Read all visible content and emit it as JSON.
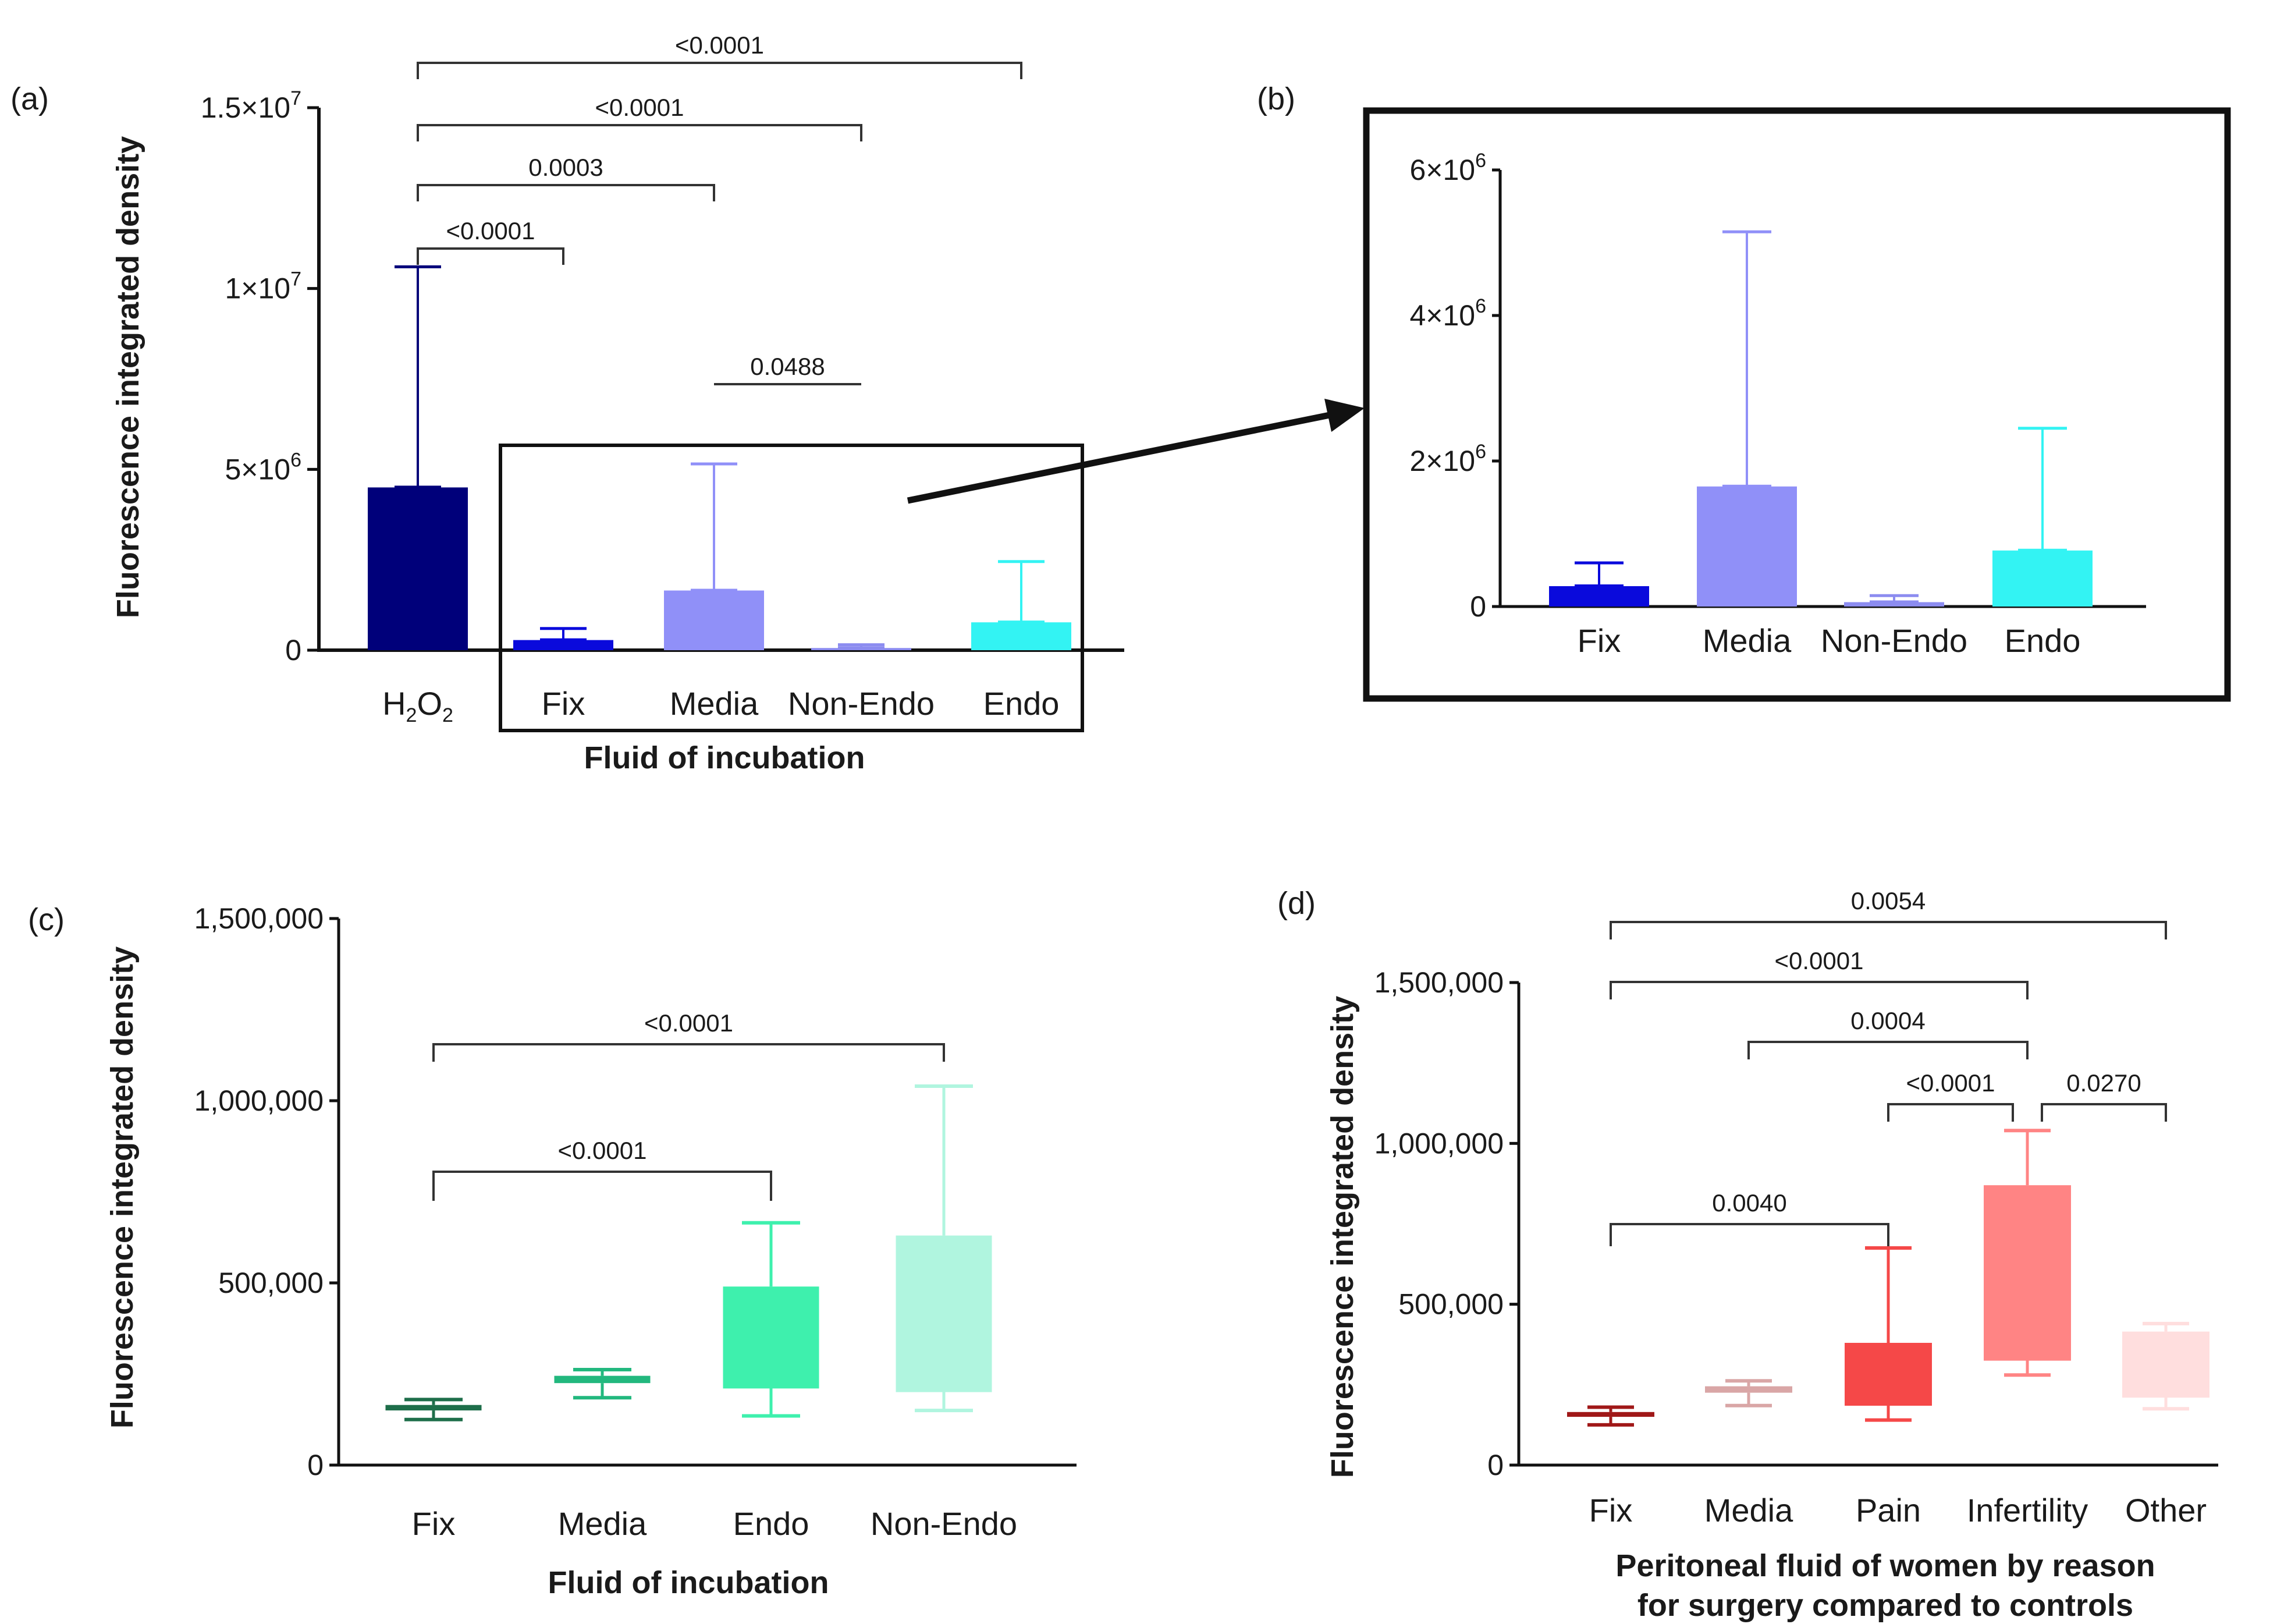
{
  "chart_data": [
    {
      "panel": "(a)",
      "type": "bar",
      "xlabel": "Fluid of incubation",
      "ylabel": "Fluorescence integrated density",
      "categories": [
        "H₂O₂",
        "Fix",
        "Media",
        "Non-Endo",
        "Endo"
      ],
      "values": [
        4500000,
        280000,
        1650000,
        60000,
        770000
      ],
      "error_upper": [
        10600000,
        600000,
        5150000,
        150000,
        2450000
      ],
      "colors": [
        "#00007a",
        "#0a0adc",
        "#9090f8",
        "#8c8cf0",
        "#33f3f3"
      ],
      "ylim": [
        0,
        15000000
      ],
      "yticks": [
        0,
        5000000,
        10000000,
        15000000
      ],
      "ytick_labels": [
        {
          "base": "0",
          "exp": ""
        },
        {
          "base": "5×10",
          "exp": "6"
        },
        {
          "base": "1×10",
          "exp": "7"
        },
        {
          "base": "1.5×10",
          "exp": "7"
        }
      ],
      "comparisons": [
        {
          "from": 0,
          "to": 4,
          "label": "<0.0001",
          "level": 4
        },
        {
          "from": 0,
          "to": 3,
          "label": "<0.0001",
          "level": 3
        },
        {
          "from": 0,
          "to": 2,
          "label": "0.0003",
          "level": 2
        },
        {
          "from": 0,
          "to": 1,
          "label": "<0.0001",
          "level": 1
        },
        {
          "from": 2,
          "to": 3,
          "label": "0.0488",
          "level": 0
        }
      ]
    },
    {
      "panel": "(b)",
      "type": "bar",
      "categories": [
        "Fix",
        "Media",
        "Non-Endo",
        "Endo"
      ],
      "values": [
        280000,
        1650000,
        60000,
        770000
      ],
      "error_upper": [
        600000,
        5150000,
        150000,
        2450000
      ],
      "colors": [
        "#0a0adc",
        "#9090f8",
        "#8c8cf0",
        "#33f3f3"
      ],
      "ylim": [
        0,
        6000000
      ],
      "yticks": [
        0,
        2000000,
        4000000,
        6000000
      ],
      "ytick_labels": [
        {
          "base": "0",
          "exp": ""
        },
        {
          "base": "2×10",
          "exp": "6"
        },
        {
          "base": "4×10",
          "exp": "6"
        },
        {
          "base": "6×10",
          "exp": "6"
        }
      ]
    },
    {
      "panel": "(c)",
      "type": "box",
      "xlabel": "Fluid of incubation",
      "ylabel": "Fluorescence integrated density",
      "categories": [
        "Fix",
        "Media",
        "Endo",
        "Non-Endo"
      ],
      "boxes": [
        {
          "min": 125000,
          "q1": 150000,
          "median": 158000,
          "q3": 165000,
          "max": 180000
        },
        {
          "min": 185000,
          "q1": 225000,
          "median": 235000,
          "q3": 245000,
          "max": 262000
        },
        {
          "min": 135000,
          "q1": 215000,
          "median": 215000,
          "q3": 490000,
          "max": 665000
        },
        {
          "min": 150000,
          "q1": 205000,
          "median": 205000,
          "q3": 630000,
          "max": 1040000
        }
      ],
      "colors": [
        "#1e6e4a",
        "#22b87e",
        "#3ef0ad",
        "#b0f5df"
      ],
      "ylim": [
        0,
        1500000
      ],
      "yticks": [
        0,
        500000,
        1000000,
        1500000
      ],
      "ytick_labels": [
        "0",
        "500,000",
        "1,000,000",
        "1,500,000"
      ],
      "comparisons": [
        {
          "from": 0,
          "to": 3,
          "label": "<0.0001",
          "level": 1
        },
        {
          "from": 0,
          "to": 2,
          "label": "<0.0001",
          "level": 0
        }
      ]
    },
    {
      "panel": "(d)",
      "type": "box",
      "xlabel": [
        "Peritoneal fluid of women by reason",
        "for surgery compared to controls"
      ],
      "ylabel": "Fluorescence integrated density",
      "categories": [
        "Fix",
        "Media",
        "Pain",
        "Infertility",
        "Other"
      ],
      "boxes": [
        {
          "min": 125000,
          "q1": 150000,
          "median": 158000,
          "q3": 165000,
          "max": 180000
        },
        {
          "min": 185000,
          "q1": 225000,
          "median": 235000,
          "q3": 245000,
          "max": 262000
        },
        {
          "min": 140000,
          "q1": 190000,
          "median": 190000,
          "q3": 380000,
          "max": 675000
        },
        {
          "min": 280000,
          "q1": 330000,
          "median": 330000,
          "q3": 870000,
          "max": 1040000
        },
        {
          "min": 175000,
          "q1": 215000,
          "median": 215000,
          "q3": 415000,
          "max": 440000
        }
      ],
      "colors": [
        "#a01818",
        "#d9a6a6",
        "#f54848",
        "#ff8484",
        "#ffdede"
      ],
      "ylim": [
        0,
        1500000
      ],
      "yticks": [
        0,
        500000,
        1000000,
        1500000
      ],
      "ytick_labels": [
        "0",
        "500,000",
        "1,000,000",
        "1,500,000"
      ],
      "comparisons": [
        {
          "from": 0,
          "to": 4,
          "label": "0.0054",
          "level": 5
        },
        {
          "from": 0,
          "to": 3,
          "label": "<0.0001",
          "level": 4
        },
        {
          "from": 1,
          "to": 3,
          "label": "0.0004",
          "level": 3
        },
        {
          "from": 2,
          "to": 3,
          "label": "<0.0001",
          "level": 2
        },
        {
          "from": 3,
          "to": 4,
          "label": "0.0270",
          "level": 2
        },
        {
          "from": 0,
          "to": 2,
          "label": "0.0040",
          "level": 0
        }
      ]
    }
  ]
}
